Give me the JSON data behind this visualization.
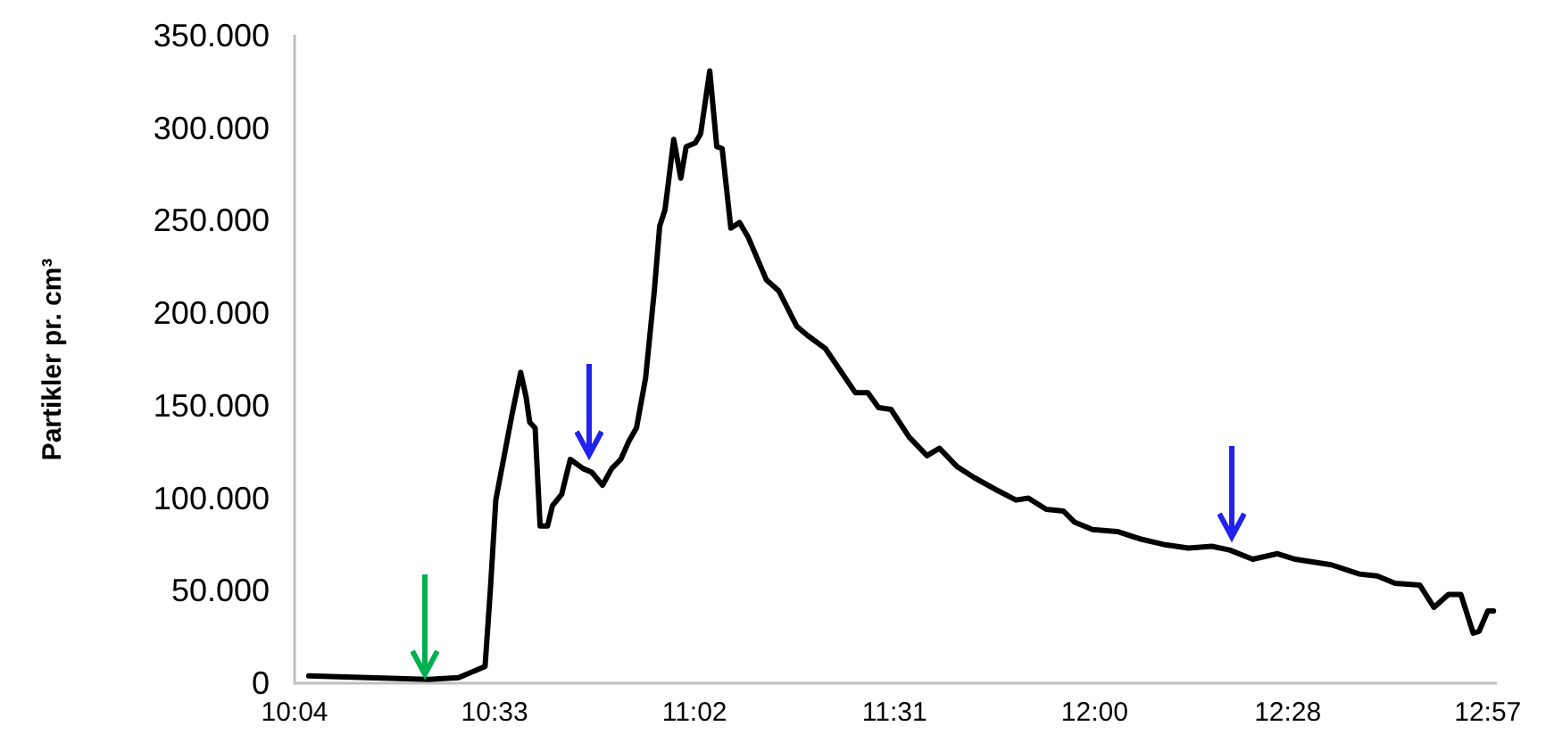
{
  "chart_data": {
    "type": "line",
    "ylabel": "Partikler pr. cm³",
    "x": [
      10.101,
      10.39,
      10.463,
      10.527,
      10.54,
      10.553,
      10.592,
      10.613,
      10.626,
      10.635,
      10.648,
      10.66,
      10.678,
      10.69,
      10.712,
      10.733,
      10.764,
      10.785,
      10.811,
      10.833,
      10.855,
      10.875,
      10.893,
      10.915,
      10.936,
      10.949,
      10.962,
      10.983,
      11.0,
      11.013,
      11.035,
      11.048,
      11.07,
      11.087,
      11.1,
      11.121,
      11.142,
      11.163,
      11.207,
      11.237,
      11.28,
      11.306,
      11.349,
      11.422,
      11.452,
      11.478,
      11.508,
      11.552,
      11.595,
      11.625,
      11.668,
      11.71,
      11.767,
      11.81,
      11.84,
      11.883,
      11.925,
      11.952,
      11.995,
      12.055,
      12.11,
      12.167,
      12.227,
      12.283,
      12.326,
      12.382,
      12.442,
      12.485,
      12.572,
      12.64,
      12.683,
      12.726,
      12.786,
      12.82,
      12.855,
      12.885,
      12.915,
      12.929,
      12.95,
      12.964
    ],
    "series": [
      {
        "color": "#000000",
        "values": [
          4000,
          2000,
          3000,
          9000,
          51000,
          99000,
          145000,
          168000,
          155000,
          141000,
          138000,
          85000,
          85000,
          96000,
          102000,
          121000,
          116000,
          114000,
          107000,
          116000,
          121000,
          131000,
          138000,
          165000,
          212000,
          247000,
          256000,
          294000,
          273000,
          290000,
          292000,
          297000,
          331000,
          290000,
          289000,
          246000,
          249000,
          241000,
          218000,
          212000,
          193000,
          188000,
          181000,
          157000,
          157000,
          149000,
          148000,
          133000,
          123000,
          127000,
          117000,
          111000,
          104000,
          99000,
          100000,
          94000,
          93000,
          87000,
          83000,
          82000,
          78000,
          75000,
          73000,
          74000,
          72000,
          67000,
          70000,
          67000,
          64000,
          59000,
          58000,
          54000,
          53000,
          41000,
          48000,
          48000,
          27000,
          28000,
          39000,
          39000
        ]
      }
    ],
    "xlim": [
      10.0667,
      12.97
    ],
    "xticks": [
      {
        "value": 10.0667,
        "label": "10:04"
      },
      {
        "value": 10.55,
        "label": "10:33"
      },
      {
        "value": 11.0333,
        "label": "11:02"
      },
      {
        "value": 11.5167,
        "label": "11:31"
      },
      {
        "value": 12,
        "label": "12:00"
      },
      {
        "value": 12.4667,
        "label": "12:28"
      },
      {
        "value": 12.95,
        "label": "12:57"
      }
    ],
    "ylim": [
      0,
      350000
    ],
    "yticks": [
      0,
      {
        "value": 50000,
        "label": "50.000"
      },
      {
        "value": 100000,
        "label": "100.000"
      },
      {
        "value": 150000,
        "label": "150.000"
      },
      {
        "value": 200000,
        "label": "200.000"
      },
      {
        "value": 250000,
        "label": "250.000"
      },
      {
        "value": 300000,
        "label": "300.000"
      },
      {
        "value": 350000,
        "label": "350.000"
      }
    ],
    "grid": false,
    "marker": "none",
    "line_style": "solid"
  }
}
